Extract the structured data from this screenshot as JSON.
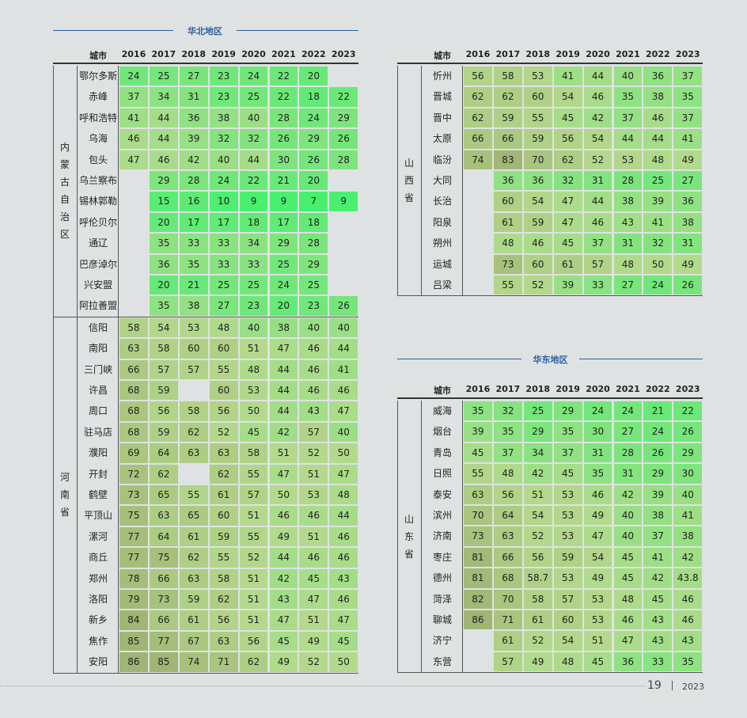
{
  "sections": {
    "north": "华北地区",
    "east": "华东地区"
  },
  "header": {
    "city": "城市",
    "years": [
      "2016",
      "2017",
      "2018",
      "2019",
      "2020",
      "2021",
      "2022",
      "2023"
    ]
  },
  "tables": {
    "neimenggu": {
      "province": "内蒙古自治区",
      "rows": [
        {
          "city": "鄂尔多斯",
          "v": [
            "24",
            "25",
            "27",
            "23",
            "24",
            "22",
            "20",
            ""
          ]
        },
        {
          "city": "赤峰",
          "v": [
            "37",
            "34",
            "31",
            "23",
            "25",
            "22",
            "18",
            "22"
          ]
        },
        {
          "city": "呼和浩特",
          "v": [
            "41",
            "44",
            "36",
            "38",
            "40",
            "28",
            "24",
            "29"
          ]
        },
        {
          "city": "乌海",
          "v": [
            "46",
            "44",
            "39",
            "32",
            "32",
            "26",
            "29",
            "26"
          ]
        },
        {
          "city": "包头",
          "v": [
            "47",
            "46",
            "42",
            "40",
            "44",
            "30",
            "26",
            "28"
          ]
        },
        {
          "city": "乌兰察布",
          "v": [
            "",
            "29",
            "28",
            "24",
            "22",
            "21",
            "20",
            ""
          ]
        },
        {
          "city": "锡林郭勒",
          "v": [
            "",
            "15",
            "16",
            "10",
            "9",
            "9",
            "7",
            "9"
          ]
        },
        {
          "city": "呼伦贝尔",
          "v": [
            "",
            "20",
            "17",
            "17",
            "18",
            "17",
            "18",
            ""
          ]
        },
        {
          "city": "通辽",
          "v": [
            "",
            "35",
            "33",
            "33",
            "34",
            "29",
            "28",
            ""
          ]
        },
        {
          "city": "巴彦淖尔",
          "v": [
            "",
            "36",
            "35",
            "33",
            "33",
            "25",
            "29",
            ""
          ]
        },
        {
          "city": "兴安盟",
          "v": [
            "",
            "20",
            "21",
            "25",
            "25",
            "24",
            "25",
            ""
          ]
        },
        {
          "city": "阿拉善盟",
          "v": [
            "",
            "35",
            "38",
            "27",
            "23",
            "20",
            "23",
            "26"
          ]
        }
      ]
    },
    "henan": {
      "province": "河南省",
      "rows": [
        {
          "city": "信阳",
          "v": [
            "58",
            "54",
            "53",
            "48",
            "40",
            "38",
            "40",
            "40"
          ]
        },
        {
          "city": "南阳",
          "v": [
            "63",
            "58",
            "60",
            "60",
            "51",
            "47",
            "46",
            "44"
          ]
        },
        {
          "city": "三门峡",
          "v": [
            "66",
            "57",
            "57",
            "55",
            "48",
            "44",
            "46",
            "41"
          ]
        },
        {
          "city": "许昌",
          "v": [
            "68",
            "59",
            "",
            "60",
            "53",
            "44",
            "46",
            "46"
          ]
        },
        {
          "city": "周口",
          "v": [
            "68",
            "56",
            "58",
            "56",
            "50",
            "44",
            "43",
            "47"
          ]
        },
        {
          "city": "驻马店",
          "v": [
            "68",
            "59",
            "62",
            "52",
            "45",
            "42",
            "57",
            "40"
          ]
        },
        {
          "city": "濮阳",
          "v": [
            "69",
            "64",
            "63",
            "63",
            "58",
            "51",
            "52",
            "50"
          ]
        },
        {
          "city": "开封",
          "v": [
            "72",
            "62",
            "",
            "62",
            "55",
            "47",
            "51",
            "47"
          ]
        },
        {
          "city": "鹤壁",
          "v": [
            "73",
            "65",
            "55",
            "61",
            "57",
            "50",
            "53",
            "48"
          ]
        },
        {
          "city": "平顶山",
          "v": [
            "75",
            "63",
            "65",
            "60",
            "51",
            "46",
            "46",
            "44"
          ]
        },
        {
          "city": "漯河",
          "v": [
            "77",
            "64",
            "61",
            "59",
            "55",
            "49",
            "51",
            "46"
          ]
        },
        {
          "city": "商丘",
          "v": [
            "77",
            "75",
            "62",
            "55",
            "52",
            "44",
            "46",
            "46"
          ]
        },
        {
          "city": "郑州",
          "v": [
            "78",
            "66",
            "63",
            "58",
            "51",
            "42",
            "45",
            "43"
          ]
        },
        {
          "city": "洛阳",
          "v": [
            "79",
            "73",
            "59",
            "62",
            "51",
            "43",
            "47",
            "46"
          ]
        },
        {
          "city": "新乡",
          "v": [
            "84",
            "66",
            "61",
            "56",
            "51",
            "47",
            "51",
            "47"
          ]
        },
        {
          "city": "焦作",
          "v": [
            "85",
            "77",
            "67",
            "63",
            "56",
            "45",
            "49",
            "45"
          ]
        },
        {
          "city": "安阳",
          "v": [
            "86",
            "85",
            "74",
            "71",
            "62",
            "49",
            "52",
            "50"
          ]
        }
      ]
    },
    "shanxi": {
      "province": "山西省",
      "rows": [
        {
          "city": "忻州",
          "v": [
            "56",
            "58",
            "53",
            "41",
            "44",
            "40",
            "36",
            "37"
          ]
        },
        {
          "city": "晋城",
          "v": [
            "62",
            "62",
            "60",
            "54",
            "46",
            "35",
            "38",
            "35"
          ]
        },
        {
          "city": "晋中",
          "v": [
            "62",
            "59",
            "55",
            "45",
            "42",
            "37",
            "46",
            "37"
          ]
        },
        {
          "city": "太原",
          "v": [
            "66",
            "66",
            "59",
            "56",
            "54",
            "44",
            "44",
            "41"
          ]
        },
        {
          "city": "临汾",
          "v": [
            "74",
            "83",
            "70",
            "62",
            "52",
            "53",
            "48",
            "49"
          ]
        },
        {
          "city": "大同",
          "v": [
            "",
            "36",
            "36",
            "32",
            "31",
            "28",
            "25",
            "27"
          ]
        },
        {
          "city": "长治",
          "v": [
            "",
            "60",
            "54",
            "47",
            "44",
            "38",
            "39",
            "36"
          ]
        },
        {
          "city": "阳泉",
          "v": [
            "",
            "61",
            "59",
            "47",
            "46",
            "43",
            "41",
            "38"
          ]
        },
        {
          "city": "朔州",
          "v": [
            "",
            "48",
            "46",
            "45",
            "37",
            "31",
            "32",
            "31"
          ]
        },
        {
          "city": "运城",
          "v": [
            "",
            "73",
            "60",
            "61",
            "57",
            "48",
            "50",
            "49"
          ]
        },
        {
          "city": "吕梁",
          "v": [
            "",
            "55",
            "52",
            "39",
            "33",
            "27",
            "24",
            "26"
          ]
        }
      ]
    },
    "shandong": {
      "province": "山东省",
      "rows": [
        {
          "city": "威海",
          "v": [
            "35",
            "32",
            "25",
            "29",
            "24",
            "24",
            "21",
            "22"
          ]
        },
        {
          "city": "烟台",
          "v": [
            "39",
            "35",
            "29",
            "35",
            "30",
            "27",
            "24",
            "26"
          ]
        },
        {
          "city": "青岛",
          "v": [
            "45",
            "37",
            "34",
            "37",
            "31",
            "28",
            "26",
            "29"
          ]
        },
        {
          "city": "日照",
          "v": [
            "55",
            "48",
            "42",
            "45",
            "35",
            "31",
            "29",
            "30"
          ]
        },
        {
          "city": "泰安",
          "v": [
            "63",
            "56",
            "51",
            "53",
            "46",
            "42",
            "39",
            "40"
          ]
        },
        {
          "city": "滨州",
          "v": [
            "70",
            "64",
            "54",
            "53",
            "49",
            "40",
            "38",
            "41"
          ]
        },
        {
          "city": "济南",
          "v": [
            "73",
            "63",
            "52",
            "53",
            "47",
            "40",
            "37",
            "38"
          ]
        },
        {
          "city": "枣庄",
          "v": [
            "81",
            "66",
            "56",
            "59",
            "54",
            "45",
            "41",
            "42"
          ]
        },
        {
          "city": "德州",
          "v": [
            "81",
            "68",
            "58.7",
            "53",
            "49",
            "45",
            "42",
            "43.8"
          ]
        },
        {
          "city": "菏泽",
          "v": [
            "82",
            "70",
            "58",
            "57",
            "53",
            "48",
            "45",
            "46"
          ]
        },
        {
          "city": "聊城",
          "v": [
            "86",
            "71",
            "61",
            "60",
            "53",
            "46",
            "43",
            "46"
          ]
        },
        {
          "city": "济宁",
          "v": [
            "",
            "61",
            "52",
            "54",
            "51",
            "47",
            "43",
            "43"
          ]
        },
        {
          "city": "东营",
          "v": [
            "",
            "57",
            "49",
            "48",
            "45",
            "36",
            "33",
            "35"
          ]
        }
      ]
    }
  },
  "footer": {
    "page": "19",
    "year": "2023"
  }
}
